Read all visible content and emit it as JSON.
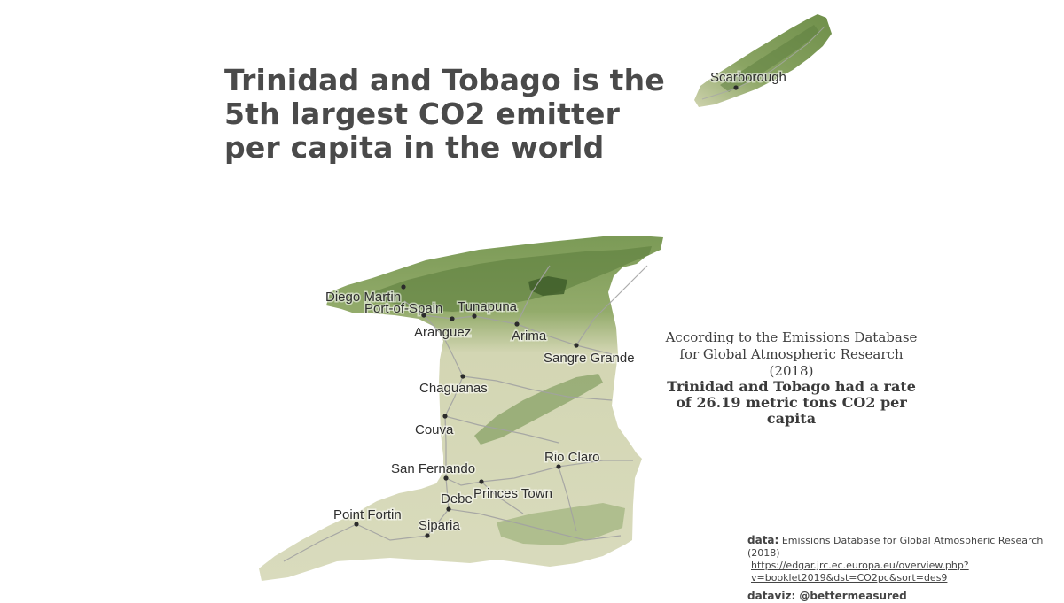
{
  "title": "Trinidad and Tobago is the 5th largest CO2 emitter per capita in the world",
  "source_text": "According to the  Emissions Database for Global Atmospheric Research (2018)",
  "finding_text": "Trinidad and Tobago had a rate of 26.19 metric tons CO2 per capita",
  "credits": {
    "data_label": "data:",
    "data_source": "Emissions Database for Global Atmospheric Research (2018)",
    "data_url": "https://edgar.jrc.ec.europa.eu/overview.php?v=booklet2019&dst=CO2pc&sort=des9",
    "dataviz_label": "dataviz: @bettermeasured"
  },
  "cities": [
    {
      "name": "Scarborough"
    },
    {
      "name": "Diego Martin"
    },
    {
      "name": "Port-of-Spain"
    },
    {
      "name": "Tunapuna"
    },
    {
      "name": "Aranguez"
    },
    {
      "name": "Arima"
    },
    {
      "name": "Sangre Grande"
    },
    {
      "name": "Chaguanas"
    },
    {
      "name": "Couva"
    },
    {
      "name": "Rio Claro"
    },
    {
      "name": "San Fernando"
    },
    {
      "name": "Princes Town"
    },
    {
      "name": "Debe"
    },
    {
      "name": "Point Fortin"
    },
    {
      "name": "Siparia"
    }
  ],
  "colors": {
    "lowland": "#d6d8b8",
    "forest": "#6c8e48",
    "dark_forest": "#3f5e2a",
    "roads": "#9a9a9a",
    "text": "#4a4a4a"
  }
}
